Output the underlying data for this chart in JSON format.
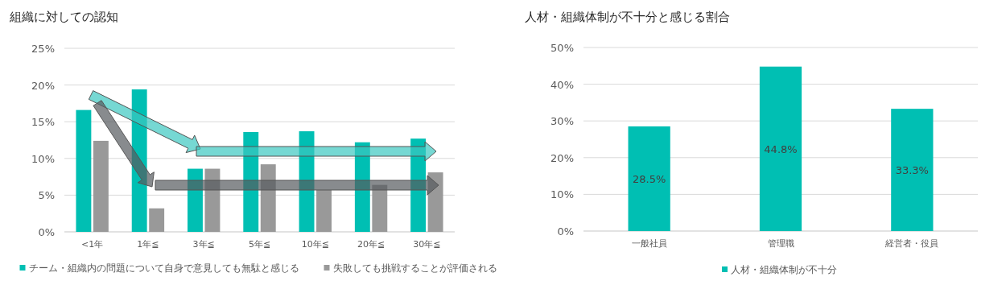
{
  "chart_data": [
    {
      "type": "bar",
      "title": "組織に対しての認知",
      "categories": [
        "<1年",
        "1年≦",
        "3年≦",
        "5年≦",
        "10年≦",
        "20年≦",
        "30年≦"
      ],
      "series": [
        {
          "name": "チーム・組織内の問題について自身で意見しても無駄と感じる",
          "color": "#00bfb3",
          "values": [
            16.6,
            19.4,
            8.6,
            13.6,
            13.7,
            12.2,
            12.7
          ]
        },
        {
          "name": "失敗しても挑戦することが評価される",
          "color": "#999999",
          "values": [
            12.4,
            3.2,
            8.6,
            9.2,
            5.7,
            6.4,
            8.1
          ]
        }
      ],
      "ylim": [
        0,
        25
      ],
      "yticks": [
        {
          "value": 0,
          "label": "0%"
        },
        {
          "value": 5,
          "label": "5%"
        },
        {
          "value": 10,
          "label": "10%"
        },
        {
          "value": 15,
          "label": "15%"
        },
        {
          "value": 20,
          "label": "20%"
        },
        {
          "value": 25,
          "label": "25%"
        }
      ],
      "grid": "y",
      "legend": "bottom"
    },
    {
      "type": "bar",
      "title": "人材・組織体制が不十分と感じる割合",
      "categories": [
        "一般社員",
        "管理職",
        "経営者・役員"
      ],
      "series": [
        {
          "name": "人材・組織体制が不十分",
          "color": "#00bfb3",
          "values": [
            28.5,
            44.8,
            33.3
          ],
          "value_labels": [
            "28.5%",
            "44.8%",
            "33.3%"
          ]
        }
      ],
      "ylim": [
        0,
        50
      ],
      "yticks": [
        {
          "value": 0,
          "label": "0%"
        },
        {
          "value": 10,
          "label": "10%"
        },
        {
          "value": 20,
          "label": "20%"
        },
        {
          "value": 30,
          "label": "30%"
        },
        {
          "value": 40,
          "label": "40%"
        },
        {
          "value": 50,
          "label": "50%"
        }
      ],
      "grid": "y",
      "legend": "bottom"
    }
  ]
}
